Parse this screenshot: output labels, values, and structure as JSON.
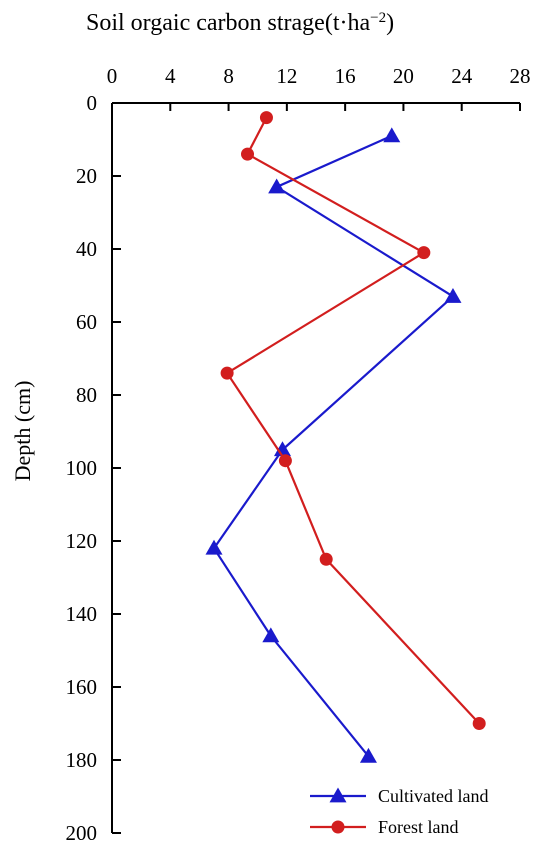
{
  "chart_data": {
    "type": "line",
    "title_main": "Soil orgaic carbon strage",
    "title_unit_open": "(t·ha",
    "title_unit_exp": "−2",
    "title_unit_close": ")",
    "ylabel": "Depth (cm)",
    "x_axis_position": "top",
    "y_axis_inverted": true,
    "xlim": [
      0,
      28
    ],
    "ylim": [
      0,
      200
    ],
    "x_ticks": [
      0,
      4,
      8,
      12,
      16,
      20,
      24,
      28
    ],
    "y_ticks": [
      0,
      20,
      40,
      60,
      80,
      100,
      120,
      140,
      160,
      180,
      200
    ],
    "grid": false,
    "legend_position": "bottom-right",
    "series": [
      {
        "name": "Cultivated land",
        "color": "#1a1acc",
        "marker": "triangle",
        "points": [
          {
            "carbon": 19.2,
            "depth": 9
          },
          {
            "carbon": 11.3,
            "depth": 23
          },
          {
            "carbon": 23.4,
            "depth": 53
          },
          {
            "carbon": 11.7,
            "depth": 95
          },
          {
            "carbon": 7.0,
            "depth": 122
          },
          {
            "carbon": 10.9,
            "depth": 146
          },
          {
            "carbon": 17.6,
            "depth": 179
          }
        ]
      },
      {
        "name": "Forest land",
        "color": "#d21e1e",
        "marker": "circle",
        "points": [
          {
            "carbon": 10.6,
            "depth": 4
          },
          {
            "carbon": 9.3,
            "depth": 14
          },
          {
            "carbon": 21.4,
            "depth": 41
          },
          {
            "carbon": 7.9,
            "depth": 74
          },
          {
            "carbon": 11.9,
            "depth": 98
          },
          {
            "carbon": 14.7,
            "depth": 125
          },
          {
            "carbon": 25.2,
            "depth": 170
          }
        ]
      }
    ]
  }
}
